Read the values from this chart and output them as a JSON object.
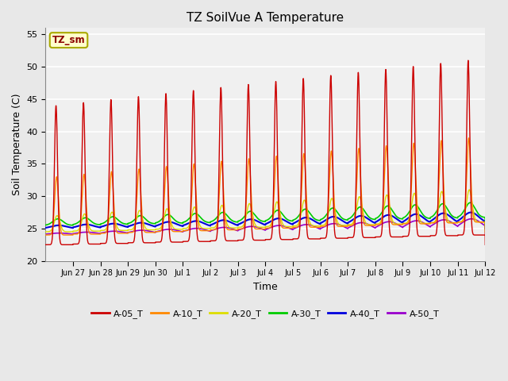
{
  "title": "TZ SoilVue A Temperature",
  "ylabel": "Soil Temperature (C)",
  "xlabel": "Time",
  "ylim": [
    20,
    56
  ],
  "yticks": [
    20,
    25,
    30,
    35,
    40,
    45,
    50,
    55
  ],
  "legend_label": "TZ_sm",
  "series_colors": {
    "A-05_T": "#cc0000",
    "A-10_T": "#ff8800",
    "A-20_T": "#dddd00",
    "A-30_T": "#00cc00",
    "A-40_T": "#0000dd",
    "A-50_T": "#9900cc"
  },
  "background_color": "#e8e8e8",
  "plot_bg_color": "#f0f0f0",
  "grid_color": "#ffffff",
  "n_days": 16,
  "samples_per_day": 288,
  "tick_day_offsets": [
    1,
    2,
    3,
    4,
    5,
    6,
    7,
    8,
    9,
    10,
    11,
    12,
    13,
    14,
    15,
    16
  ],
  "tick_labels": [
    "Jun 27",
    "Jun 28",
    "Jun 29",
    "Jun 30",
    "Jul 1",
    "Jul 2",
    "Jul 3",
    "Jul 4",
    "Jul 5",
    "Jul 6",
    "Jul 7",
    "Jul 8",
    "Jul 9",
    "Jul 10",
    "Jul 11",
    "Jul 12"
  ]
}
